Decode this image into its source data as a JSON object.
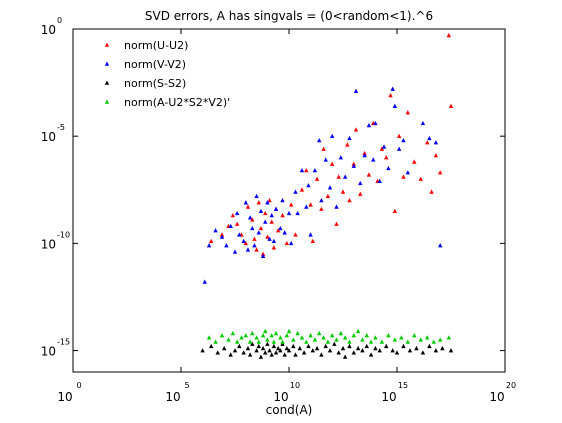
{
  "chart_data": {
    "type": "scatter",
    "title": "SVD errors, A has singvals = (0<random<1).^6",
    "xlabel": "cond(A)",
    "ylabel": "",
    "x_scale": "log",
    "y_scale": "log",
    "x_log_range": [
      0,
      20
    ],
    "y_log_range": [
      -16,
      0
    ],
    "x_ticks": [
      {
        "base": "10",
        "exp": "0",
        "value": 0
      },
      {
        "base": "10",
        "exp": "5",
        "value": 5
      },
      {
        "base": "10",
        "exp": "10",
        "value": 10
      },
      {
        "base": "10",
        "exp": "15",
        "value": 15
      },
      {
        "base": "10",
        "exp": "20",
        "value": 20
      }
    ],
    "y_ticks": [
      {
        "base": "10",
        "exp": "0",
        "value": 0
      },
      {
        "base": "10",
        "exp": "-5",
        "value": -5
      },
      {
        "base": "10",
        "exp": "-10",
        "value": -10
      },
      {
        "base": "10",
        "exp": "-15",
        "value": -15
      }
    ],
    "grid": false,
    "legend_position": "top-left",
    "series": [
      {
        "name": "norm(U-U2)",
        "color": "#ff0000",
        "points": [
          [
            6.4,
            -9.9
          ],
          [
            6.9,
            -9.6
          ],
          [
            7.2,
            -9.2
          ],
          [
            7.4,
            -8.7
          ],
          [
            7.6,
            -9.1
          ],
          [
            7.8,
            -9.6
          ],
          [
            8.0,
            -10.0
          ],
          [
            8.1,
            -8.3
          ],
          [
            8.3,
            -8.9
          ],
          [
            8.4,
            -9.8
          ],
          [
            8.5,
            -10.3
          ],
          [
            8.6,
            -8.1
          ],
          [
            8.7,
            -9.3
          ],
          [
            8.8,
            -10.5
          ],
          [
            8.9,
            -8.6
          ],
          [
            9.0,
            -9.7
          ],
          [
            9.1,
            -8.0
          ],
          [
            9.2,
            -9.0
          ],
          [
            9.3,
            -10.2
          ],
          [
            9.4,
            -8.4
          ],
          [
            9.5,
            -9.4
          ],
          [
            9.7,
            -8.7
          ],
          [
            9.9,
            -10.0
          ],
          [
            10.1,
            -8.2
          ],
          [
            10.3,
            -9.6
          ],
          [
            10.6,
            -7.5
          ],
          [
            10.8,
            -6.6
          ],
          [
            11.0,
            -8.2
          ],
          [
            11.1,
            -9.9
          ],
          [
            11.3,
            -7.0
          ],
          [
            11.5,
            -8.4
          ],
          [
            11.6,
            -5.6
          ],
          [
            11.8,
            -7.8
          ],
          [
            12.0,
            -6.3
          ],
          [
            12.2,
            -9.1
          ],
          [
            12.3,
            -6.9
          ],
          [
            12.5,
            -7.6
          ],
          [
            12.7,
            -5.4
          ],
          [
            12.8,
            -8.0
          ],
          [
            13.0,
            -6.3
          ],
          [
            13.1,
            -4.7
          ],
          [
            13.3,
            -7.7
          ],
          [
            13.5,
            -5.8
          ],
          [
            13.7,
            -6.8
          ],
          [
            13.9,
            -4.4
          ],
          [
            14.1,
            -7.1
          ],
          [
            14.3,
            -5.6
          ],
          [
            14.5,
            -6.0
          ],
          [
            14.7,
            -3.1
          ],
          [
            14.9,
            -8.5
          ],
          [
            15.1,
            -5.0
          ],
          [
            15.3,
            -6.9
          ],
          [
            15.5,
            -3.9
          ],
          [
            15.8,
            -6.2
          ],
          [
            16.1,
            -7.0
          ],
          [
            16.4,
            -5.3
          ],
          [
            16.6,
            -7.6
          ],
          [
            16.8,
            -5.9
          ],
          [
            17.0,
            -6.7
          ],
          [
            17.4,
            -0.3
          ],
          [
            17.5,
            -3.6
          ]
        ]
      },
      {
        "name": "norm(V-V2)",
        "color": "#0000ff",
        "points": [
          [
            6.1,
            -11.8
          ],
          [
            6.3,
            -10.1
          ],
          [
            6.6,
            -9.4
          ],
          [
            6.9,
            -9.7
          ],
          [
            7.1,
            -10.1
          ],
          [
            7.3,
            -9.2
          ],
          [
            7.5,
            -10.4
          ],
          [
            7.6,
            -8.6
          ],
          [
            7.7,
            -9.6
          ],
          [
            7.9,
            -9.9
          ],
          [
            8.0,
            -8.1
          ],
          [
            8.1,
            -10.3
          ],
          [
            8.2,
            -8.8
          ],
          [
            8.3,
            -9.3
          ],
          [
            8.4,
            -10.1
          ],
          [
            8.5,
            -7.8
          ],
          [
            8.6,
            -9.5
          ],
          [
            8.7,
            -8.5
          ],
          [
            8.8,
            -10.6
          ],
          [
            8.9,
            -9.0
          ],
          [
            9.0,
            -8.1
          ],
          [
            9.1,
            -9.8
          ],
          [
            9.2,
            -8.7
          ],
          [
            9.3,
            -9.9
          ],
          [
            9.4,
            -8.4
          ],
          [
            9.6,
            -9.3
          ],
          [
            9.7,
            -8.0
          ],
          [
            9.8,
            -9.5
          ],
          [
            10.0,
            -8.6
          ],
          [
            10.1,
            -10.0
          ],
          [
            10.3,
            -7.6
          ],
          [
            10.4,
            -8.6
          ],
          [
            10.6,
            -6.6
          ],
          [
            10.8,
            -8.3
          ],
          [
            10.9,
            -7.3
          ],
          [
            11.0,
            -9.6
          ],
          [
            11.2,
            -6.6
          ],
          [
            11.4,
            -5.2
          ],
          [
            11.5,
            -8.0
          ],
          [
            11.7,
            -6.1
          ],
          [
            11.9,
            -7.4
          ],
          [
            12.0,
            -5.0
          ],
          [
            12.2,
            -8.3
          ],
          [
            12.4,
            -6.0
          ],
          [
            12.6,
            -6.9
          ],
          [
            12.8,
            -5.1
          ],
          [
            13.0,
            -6.4
          ],
          [
            13.1,
            -2.9
          ],
          [
            13.3,
            -7.2
          ],
          [
            13.5,
            -5.9
          ],
          [
            13.7,
            -4.5
          ],
          [
            13.9,
            -6.1
          ],
          [
            14.0,
            -4.4
          ],
          [
            14.2,
            -7.1
          ],
          [
            14.4,
            -5.5
          ],
          [
            14.6,
            -6.5
          ],
          [
            14.8,
            -2.8
          ],
          [
            14.9,
            -3.6
          ],
          [
            15.1,
            -5.6
          ],
          [
            15.3,
            -5.2
          ],
          [
            15.5,
            -6.7
          ],
          [
            16.2,
            -4.4
          ],
          [
            16.5,
            -5.1
          ],
          [
            16.8,
            -5.3
          ],
          [
            17.0,
            -10.1
          ]
        ]
      },
      {
        "name": "norm(S-S2)",
        "color": "#000000",
        "points": [
          [
            6.0,
            -15.0
          ],
          [
            6.4,
            -14.8
          ],
          [
            6.7,
            -15.1
          ],
          [
            7.0,
            -14.9
          ],
          [
            7.3,
            -15.2
          ],
          [
            7.5,
            -15.0
          ],
          [
            7.7,
            -14.8
          ],
          [
            7.9,
            -15.1
          ],
          [
            8.1,
            -14.9
          ],
          [
            8.2,
            -15.2
          ],
          [
            8.3,
            -14.7
          ],
          [
            8.5,
            -15.0
          ],
          [
            8.6,
            -14.8
          ],
          [
            8.7,
            -15.3
          ],
          [
            8.8,
            -14.9
          ],
          [
            8.9,
            -15.1
          ],
          [
            9.0,
            -14.7
          ],
          [
            9.1,
            -15.0
          ],
          [
            9.2,
            -15.2
          ],
          [
            9.3,
            -14.8
          ],
          [
            9.4,
            -15.1
          ],
          [
            9.5,
            -14.9
          ],
          [
            9.6,
            -15.0
          ],
          [
            9.7,
            -14.7
          ],
          [
            9.8,
            -15.2
          ],
          [
            9.9,
            -14.9
          ],
          [
            10.0,
            -15.0
          ],
          [
            10.2,
            -14.8
          ],
          [
            10.3,
            -15.2
          ],
          [
            10.5,
            -14.9
          ],
          [
            10.7,
            -15.1
          ],
          [
            10.9,
            -14.8
          ],
          [
            11.1,
            -15.0
          ],
          [
            11.3,
            -14.9
          ],
          [
            11.5,
            -15.2
          ],
          [
            11.7,
            -14.8
          ],
          [
            11.9,
            -15.0
          ],
          [
            12.1,
            -14.7
          ],
          [
            12.3,
            -15.1
          ],
          [
            12.5,
            -14.9
          ],
          [
            12.6,
            -15.3
          ],
          [
            12.8,
            -14.8
          ],
          [
            13.0,
            -15.1
          ],
          [
            13.2,
            -14.9
          ],
          [
            13.4,
            -15.0
          ],
          [
            13.6,
            -14.8
          ],
          [
            13.8,
            -15.2
          ],
          [
            14.0,
            -14.9
          ],
          [
            14.2,
            -15.0
          ],
          [
            14.5,
            -14.8
          ],
          [
            14.8,
            -15.0
          ],
          [
            15.0,
            -15.1
          ],
          [
            15.3,
            -14.8
          ],
          [
            15.6,
            -15.0
          ],
          [
            15.9,
            -14.9
          ],
          [
            16.2,
            -15.1
          ],
          [
            16.5,
            -14.8
          ],
          [
            16.8,
            -15.0
          ],
          [
            17.1,
            -14.9
          ],
          [
            17.5,
            -15.0
          ]
        ]
      },
      {
        "name": "norm(A-U2*S2*V2)'",
        "color": "#00cc00",
        "points": [
          [
            6.3,
            -14.4
          ],
          [
            6.6,
            -14.6
          ],
          [
            6.9,
            -14.3
          ],
          [
            7.2,
            -14.5
          ],
          [
            7.4,
            -14.2
          ],
          [
            7.6,
            -14.6
          ],
          [
            7.8,
            -14.4
          ],
          [
            8.0,
            -14.3
          ],
          [
            8.2,
            -14.6
          ],
          [
            8.3,
            -14.2
          ],
          [
            8.5,
            -14.4
          ],
          [
            8.6,
            -14.6
          ],
          [
            8.8,
            -14.3
          ],
          [
            8.9,
            -14.1
          ],
          [
            9.0,
            -14.5
          ],
          [
            9.2,
            -14.3
          ],
          [
            9.3,
            -14.6
          ],
          [
            9.4,
            -14.2
          ],
          [
            9.6,
            -14.4
          ],
          [
            9.7,
            -14.6
          ],
          [
            9.9,
            -14.3
          ],
          [
            10.0,
            -14.1
          ],
          [
            10.2,
            -14.5
          ],
          [
            10.4,
            -14.2
          ],
          [
            10.6,
            -14.4
          ],
          [
            10.8,
            -14.6
          ],
          [
            11.0,
            -14.3
          ],
          [
            11.2,
            -14.5
          ],
          [
            11.4,
            -14.2
          ],
          [
            11.6,
            -14.4
          ],
          [
            11.8,
            -14.6
          ],
          [
            12.0,
            -14.3
          ],
          [
            12.2,
            -14.5
          ],
          [
            12.4,
            -14.2
          ],
          [
            12.6,
            -14.4
          ],
          [
            12.8,
            -14.6
          ],
          [
            13.0,
            -14.3
          ],
          [
            13.2,
            -14.1
          ],
          [
            13.4,
            -14.5
          ],
          [
            13.6,
            -14.3
          ],
          [
            13.8,
            -14.6
          ],
          [
            14.0,
            -14.4
          ],
          [
            14.3,
            -14.6
          ],
          [
            14.6,
            -14.3
          ],
          [
            14.9,
            -14.5
          ],
          [
            15.2,
            -14.4
          ],
          [
            15.5,
            -14.6
          ],
          [
            15.8,
            -14.3
          ],
          [
            16.1,
            -14.5
          ],
          [
            16.4,
            -14.4
          ],
          [
            16.7,
            -14.6
          ],
          [
            17.0,
            -14.5
          ],
          [
            17.4,
            -14.4
          ]
        ]
      }
    ]
  }
}
